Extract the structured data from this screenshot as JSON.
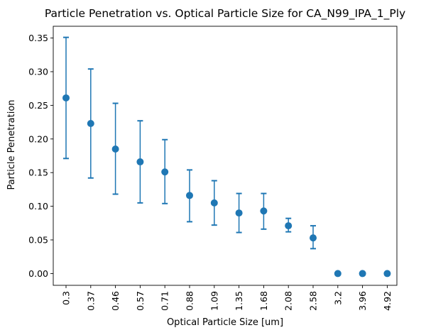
{
  "chart_data": {
    "type": "scatter",
    "title": "Particle Penetration vs. Optical Particle Size for CA_N99_IPA_1_Ply",
    "xlabel": "Optical Particle Size [um]",
    "ylabel": "Particle Penetration",
    "categories": [
      "0.3",
      "0.37",
      "0.46",
      "0.57",
      "0.71",
      "0.88",
      "1.09",
      "1.35",
      "1.68",
      "2.08",
      "2.58",
      "3.2",
      "3.96",
      "4.92"
    ],
    "values": [
      0.261,
      0.223,
      0.185,
      0.166,
      0.151,
      0.116,
      0.105,
      0.09,
      0.093,
      0.071,
      0.053,
      0.0,
      0.0,
      0.0
    ],
    "error_low": [
      0.171,
      0.142,
      0.118,
      0.105,
      0.104,
      0.077,
      0.072,
      0.061,
      0.066,
      0.062,
      0.037,
      null,
      null,
      null
    ],
    "error_high": [
      0.351,
      0.304,
      0.253,
      0.227,
      0.199,
      0.154,
      0.138,
      0.119,
      0.119,
      0.082,
      0.071,
      null,
      null,
      null
    ],
    "ylim": [
      -0.0175,
      0.3675
    ],
    "yticks": [
      0.0,
      0.05,
      0.1,
      0.15,
      0.2,
      0.25,
      0.3,
      0.35
    ],
    "ytick_labels": [
      "0.00",
      "0.05",
      "0.10",
      "0.15",
      "0.20",
      "0.25",
      "0.30",
      "0.35"
    ],
    "color": "#1f77b4",
    "grid": false,
    "legend": "none"
  }
}
